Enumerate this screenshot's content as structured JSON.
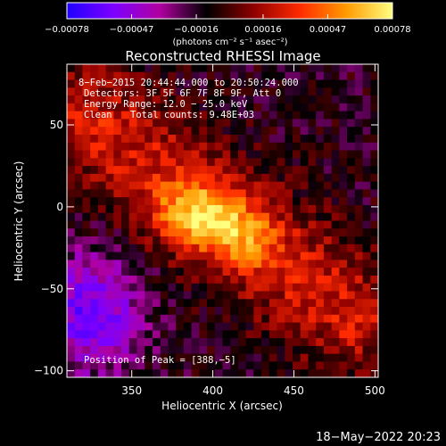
{
  "chart_data": {
    "type": "heatmap",
    "title": "Reconstructed RHESSI Image",
    "xlabel": "Heliocentric X (arcsec)",
    "ylabel": "Heliocentric Y (arcsec)",
    "xlim": [
      310,
      502
    ],
    "ylim": [
      -104,
      87
    ],
    "xticks": [
      "350",
      "400",
      "450",
      "500"
    ],
    "xtick_values": [
      350,
      400,
      450,
      500
    ],
    "yticks": [
      "50",
      "0",
      "−50",
      "−100"
    ],
    "ytick_values": [
      50,
      0,
      -50,
      -100
    ],
    "colorbar": {
      "ticks": [
        "−0.00078",
        "−0.00047",
        "−0.00016",
        "0.00016",
        "0.00047",
        "0.00078"
      ],
      "tick_values": [
        -0.00078,
        -0.00047,
        -0.00016,
        0.00016,
        0.00047,
        0.00078
      ],
      "range": [
        -0.00078,
        0.00078
      ],
      "units": "(photons cm⁻² s⁻¹ asec⁻²)",
      "colors": [
        "#1e00ff",
        "#7d00ff",
        "#b000a0",
        "#000000",
        "#8c0000",
        "#ff2a00",
        "#ff9a00",
        "#ffff80"
      ]
    },
    "peak": {
      "x": 388,
      "y": -5,
      "value": 0.00078
    },
    "secondary_peak": {
      "x": 418,
      "y": -18,
      "value": 0.0006
    },
    "diffuse_ridge": {
      "from": [
        335,
        45
      ],
      "to": [
        470,
        -55
      ]
    },
    "negative_region": {
      "x": 325,
      "y": -65,
      "value": -0.00045
    },
    "annotations": {
      "time_range": "8−Feb−2015 20:44:44.000 to 20:50:24.000",
      "detectors": "Detectors: 3F 5F 6F 7F 8F 9F, Att 0",
      "energy": "Energy Range: 12.0 − 25.0 keV",
      "clean": "Clean",
      "counts": "Total counts: 9.48E+03",
      "peak_position": "Position of Peak = [388,−5]"
    }
  },
  "footer": {
    "timestamp": "18−May−2022 20:23"
  }
}
